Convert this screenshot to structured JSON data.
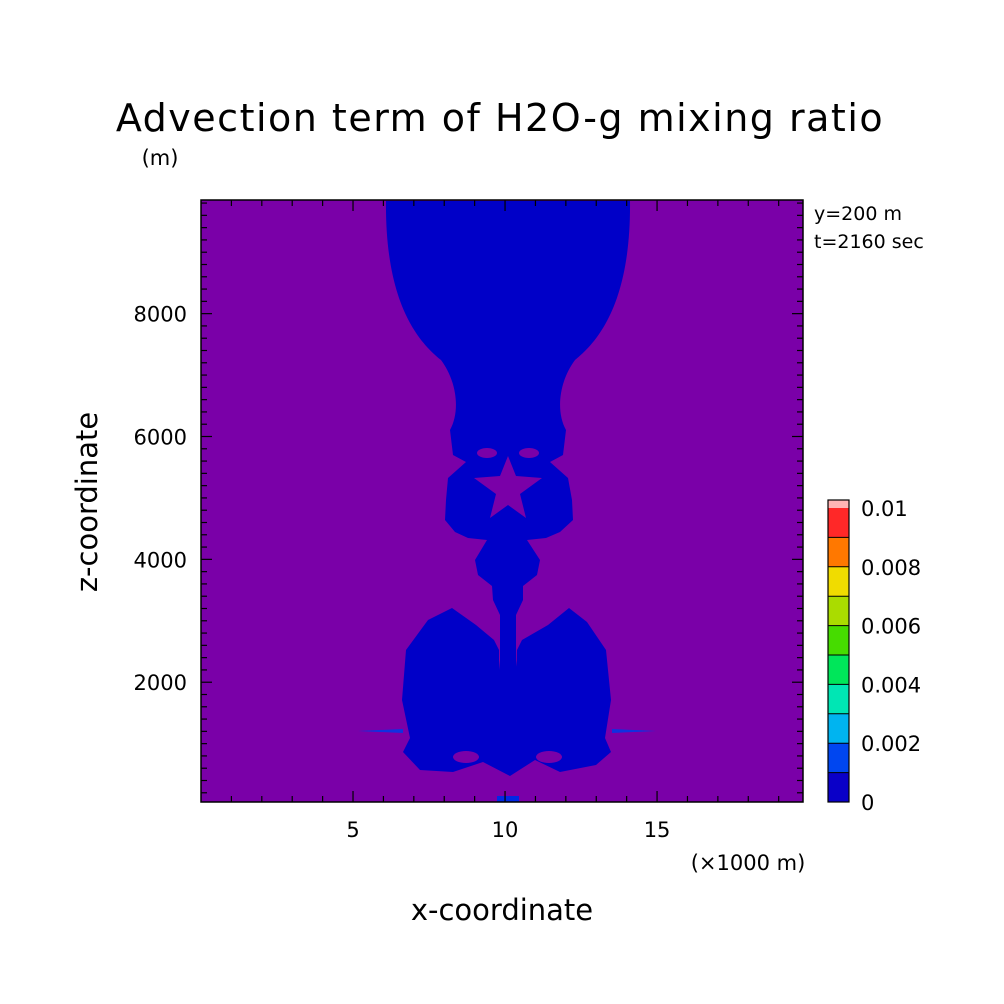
{
  "chart_data": {
    "type": "heatmap",
    "title": "Advection term of H2O-g mixing ratio",
    "z_unit": "(m)",
    "xlabel": "x-coordinate",
    "ylabel": "z-coordinate",
    "x_unit": "(×1000 m)",
    "annotations": [
      "y=200 m",
      "t=2160 sec"
    ],
    "xlim": [
      0,
      19.8
    ],
    "ylim": [
      50,
      9850
    ],
    "x_ticks": [
      5,
      10,
      15
    ],
    "y_ticks": [
      2000,
      4000,
      6000,
      8000
    ],
    "colorbar": {
      "levels": [
        0,
        0.001,
        0.002,
        0.003,
        0.004,
        0.005,
        0.006,
        0.007,
        0.008,
        0.009,
        0.01
      ],
      "tick_labels": [
        "0",
        "0.002",
        "0.004",
        "0.006",
        "0.008",
        "0.01"
      ],
      "tick_values": [
        0,
        0.002,
        0.004,
        0.006,
        0.008,
        0.01
      ],
      "colors": [
        "#0a00c8",
        "#0046f0",
        "#00b4f0",
        "#00e6b4",
        "#00e65a",
        "#46dc00",
        "#aadc00",
        "#f0dc00",
        "#ff7800",
        "#ff2828"
      ]
    },
    "background_level_color": "#7a00a8",
    "positive_region_color": "#0000c8",
    "grid": false,
    "legend": "colorbar right"
  }
}
